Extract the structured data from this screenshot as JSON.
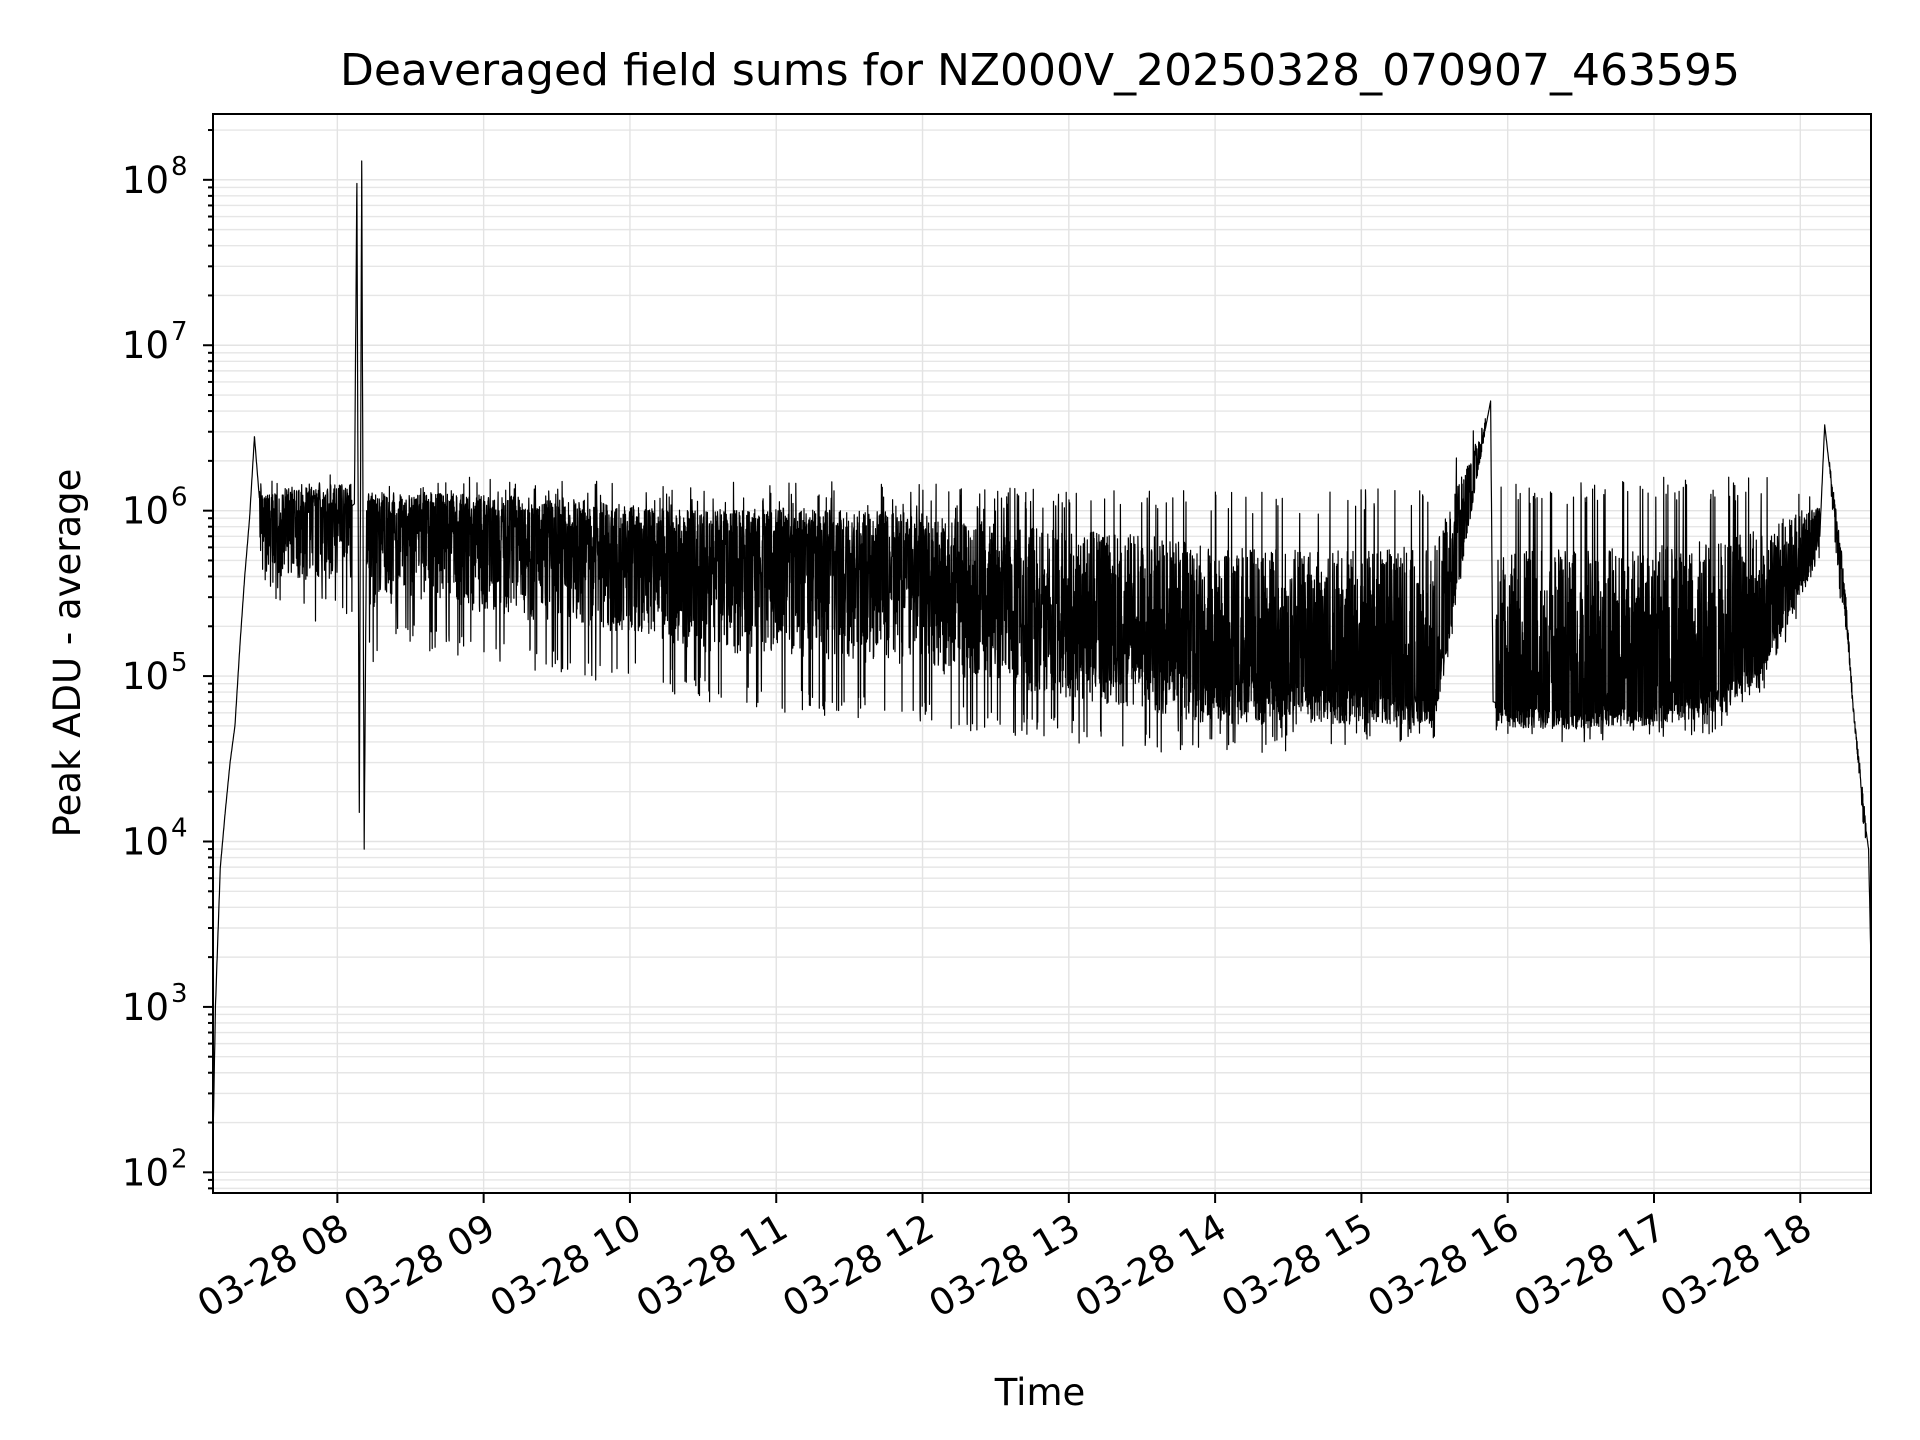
{
  "chart_data": {
    "type": "line",
    "title": "Deaveraged field sums for NZ000V_20250328_070907_463595",
    "xlabel": "Time",
    "ylabel": "Peak ADU - average",
    "yscale": "log",
    "xlim": [
      "2025-03-28 07:09",
      "2025-03-28 18:29"
    ],
    "ylim": [
      75,
      250000000
    ],
    "grid": "major and minor",
    "legend": "none",
    "line_color": "#000000",
    "x_ticks": [
      {
        "value": "2025-03-28 08:00",
        "label": "03-28 08"
      },
      {
        "value": "2025-03-28 09:00",
        "label": "03-28 09"
      },
      {
        "value": "2025-03-28 10:00",
        "label": "03-28 10"
      },
      {
        "value": "2025-03-28 11:00",
        "label": "03-28 11"
      },
      {
        "value": "2025-03-28 12:00",
        "label": "03-28 12"
      },
      {
        "value": "2025-03-28 13:00",
        "label": "03-28 13"
      },
      {
        "value": "2025-03-28 14:00",
        "label": "03-28 14"
      },
      {
        "value": "2025-03-28 15:00",
        "label": "03-28 15"
      },
      {
        "value": "2025-03-28 16:00",
        "label": "03-28 16"
      },
      {
        "value": "2025-03-28 17:00",
        "label": "03-28 17"
      },
      {
        "value": "2025-03-28 18:00",
        "label": "03-28 18"
      }
    ],
    "y_ticks": [
      {
        "value": 100,
        "base": "10",
        "exp": "2"
      },
      {
        "value": 1000,
        "base": "10",
        "exp": "3"
      },
      {
        "value": 10000,
        "base": "10",
        "exp": "4"
      },
      {
        "value": 100000,
        "base": "10",
        "exp": "5"
      },
      {
        "value": 1000000,
        "base": "10",
        "exp": "6"
      },
      {
        "value": 10000000,
        "base": "10",
        "exp": "7"
      },
      {
        "value": 100000000,
        "base": "10",
        "exp": "8"
      }
    ],
    "series": [
      {
        "x": [
          "2025-03-28 07:09",
          "2025-03-28 07:10",
          "2025-03-28 07:12",
          "2025-03-28 07:14",
          "2025-03-28 07:16",
          "2025-03-28 07:18",
          "2025-03-28 07:20",
          "2025-03-28 07:22",
          "2025-03-28 07:24",
          "2025-03-28 07:26",
          "2025-03-28 07:28",
          "2025-03-28 07:30",
          "2025-03-28 07:45",
          "2025-03-28 08:00",
          "2025-03-28 08:07",
          "2025-03-28 08:08",
          "2025-03-28 08:09",
          "2025-03-28 08:10",
          "2025-03-28 08:11",
          "2025-03-28 08:12",
          "2025-03-28 08:14",
          "2025-03-28 08:30",
          "2025-03-28 09:00",
          "2025-03-28 09:30",
          "2025-03-28 10:00",
          "2025-03-28 10:30",
          "2025-03-28 11:00",
          "2025-03-28 11:30",
          "2025-03-28 12:00",
          "2025-03-28 12:30",
          "2025-03-28 13:00",
          "2025-03-28 13:30",
          "2025-03-28 14:00",
          "2025-03-28 14:30",
          "2025-03-28 15:00",
          "2025-03-28 15:30",
          "2025-03-28 15:53",
          "2025-03-28 15:54",
          "2025-03-28 16:00",
          "2025-03-28 16:30",
          "2025-03-28 17:00",
          "2025-03-28 17:30",
          "2025-03-28 17:50",
          "2025-03-28 18:00",
          "2025-03-28 18:08",
          "2025-03-28 18:10",
          "2025-03-28 18:14",
          "2025-03-28 18:18",
          "2025-03-28 18:22",
          "2025-03-28 18:26",
          "2025-03-28 18:28",
          "2025-03-28 18:29"
        ],
        "y": [
          150,
          1000,
          7000,
          15000,
          30000,
          50000,
          150000,
          400000,
          900000,
          2800000,
          1200000,
          700000,
          1000000,
          900000,
          1100000,
          95000000,
          15000,
          130000000,
          9000,
          1000000,
          800000,
          800000,
          700000,
          600000,
          500000,
          400000,
          450000,
          400000,
          350000,
          250000,
          180000,
          150000,
          100000,
          90000,
          80000,
          75000,
          4600000,
          70000,
          65000,
          62000,
          65000,
          90000,
          200000,
          400000,
          700000,
          3300000,
          1000000,
          300000,
          60000,
          15000,
          9000,
          1800
        ],
        "band_upper": [
          150,
          1000,
          7000,
          15000,
          30000,
          50000,
          150000,
          400000,
          900000,
          2800000,
          1800000,
          1600000,
          1700000,
          1800000,
          1700000,
          95000000,
          1500000,
          130000000,
          1500000,
          1700000,
          1600000,
          1600000,
          1600000,
          1600000,
          1500000,
          1500000,
          1500000,
          1500000,
          1500000,
          1400000,
          1400000,
          1400000,
          1300000,
          1300000,
          1400000,
          1500000,
          4600000,
          1500000,
          1500000,
          1500000,
          1600000,
          1600000,
          1600000,
          1500000,
          1300000,
          3300000,
          1300000,
          500000,
          60000,
          20000,
          10000,
          1800
        ],
        "band_lower": [
          150,
          1000,
          7000,
          15000,
          30000,
          50000,
          150000,
          400000,
          900000,
          2800000,
          500000,
          300000,
          200000,
          220000,
          200000,
          95000000,
          10000,
          130000000,
          9000,
          150000,
          120000,
          150000,
          120000,
          100000,
          90000,
          70000,
          60000,
          55000,
          50000,
          45000,
          40000,
          35000,
          32000,
          35000,
          38000,
          40000,
          4600000,
          40000,
          40000,
          40000,
          42000,
          45000,
          100000,
          250000,
          400000,
          3300000,
          500000,
          200000,
          50000,
          10000,
          8000,
          1800
        ]
      }
    ]
  }
}
